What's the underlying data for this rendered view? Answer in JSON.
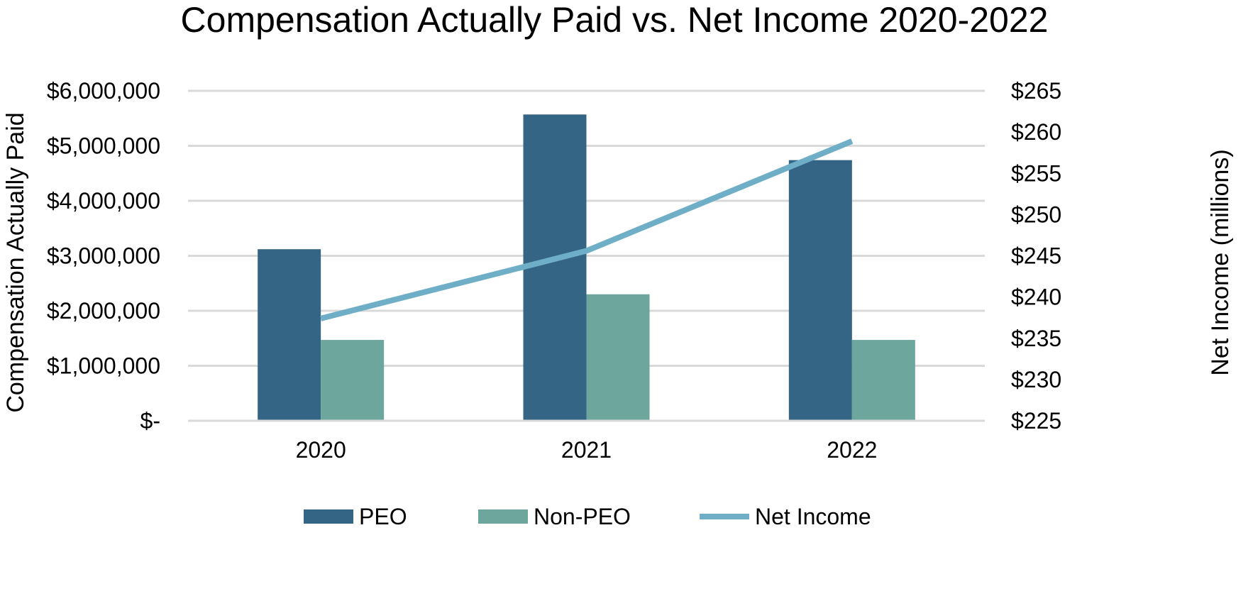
{
  "chart_data": {
    "type": "bar",
    "title": "Compensation Actually Paid vs. Net Income 2020-2022",
    "xlabel": "",
    "ylabel": "Compensation Actually Paid",
    "y2label": "Net Income (millions)",
    "categories": [
      "2020",
      "2021",
      "2022"
    ],
    "ylim": [
      0,
      6000000
    ],
    "y2lim": [
      225,
      265
    ],
    "y_ticks": [
      "$-",
      "$1,000,000",
      "$2,000,000",
      "$3,000,000",
      "$4,000,000",
      "$5,000,000",
      "$6,000,000"
    ],
    "y2_ticks": [
      "$225",
      "$230",
      "$235",
      "$240",
      "$245",
      "$250",
      "$255",
      "$260",
      "$265"
    ],
    "grid": true,
    "legend_position": "bottom",
    "series": [
      {
        "name": "PEO",
        "type": "bar",
        "axis": "left",
        "color": "#346584",
        "values": [
          3120000,
          5570000,
          4740000
        ]
      },
      {
        "name": "Non-PEO",
        "type": "bar",
        "axis": "left",
        "color": "#6ca69d",
        "values": [
          1470000,
          2300000,
          1470000
        ]
      },
      {
        "name": "Net Income",
        "type": "line",
        "axis": "right",
        "color": "#6eaec6",
        "values": [
          237.4,
          245.6,
          258.9
        ]
      }
    ]
  }
}
